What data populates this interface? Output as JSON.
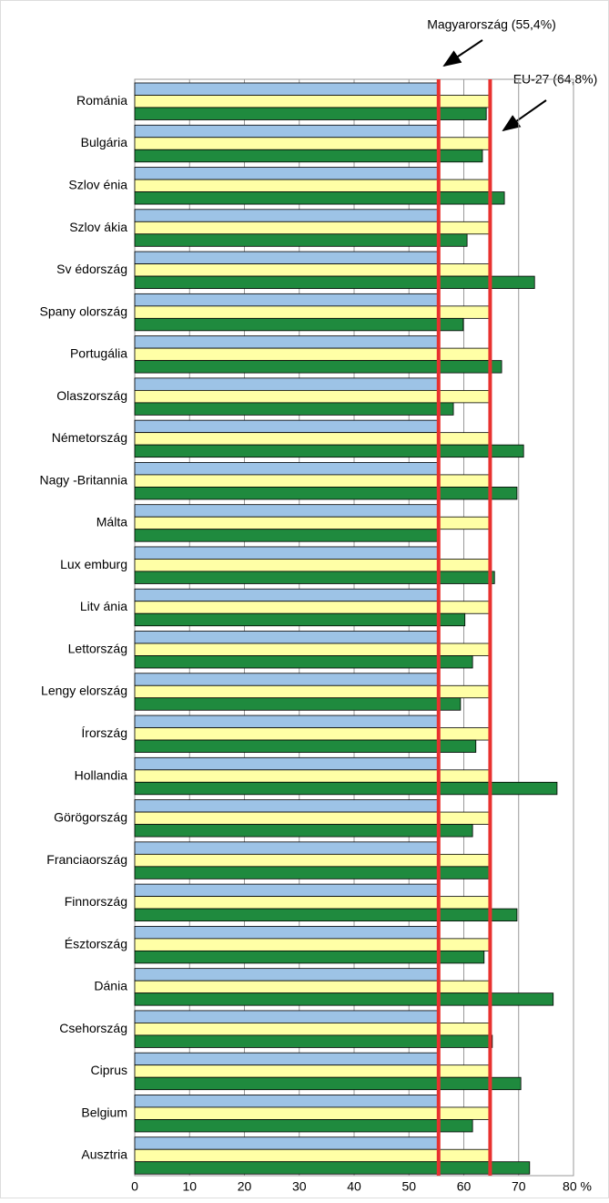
{
  "chart_data": {
    "type": "hbar",
    "annotations": [
      "Magyarország (55,4%)",
      "EU-27 (64,8%)"
    ],
    "categories": [
      "Románia",
      "Bulgária",
      "Szlov énia",
      "Szlov ákia",
      "Sv édország",
      "Spany olország",
      "Portugália",
      "Olaszország",
      "Németország",
      "Nagy -Britannia",
      "Málta",
      "Lux emburg",
      "Litv ánia",
      "Lettország",
      "Lengy elország",
      "Írország",
      "Hollandia",
      "Görögország",
      "Franciaország",
      "Finnország",
      "Észtország",
      "Dánia",
      "Csehország",
      "Ciprus",
      "Belgium",
      "Ausztria"
    ],
    "series": [
      {
        "color": "#9dc3e6",
        "values": [
          55.4,
          55.4,
          55.4,
          55.4,
          55.4,
          55.4,
          55.4,
          55.4,
          55.4,
          55.4,
          55.4,
          55.4,
          55.4,
          55.4,
          55.4,
          55.4,
          55.4,
          55.4,
          55.4,
          55.4,
          55.4,
          55.4,
          55.4,
          55.4,
          55.4,
          55.4
        ]
      },
      {
        "color": "#ffffa6",
        "values": [
          64.8,
          64.8,
          64.8,
          64.8,
          64.8,
          64.8,
          64.8,
          64.8,
          64.8,
          64.8,
          64.8,
          64.8,
          64.8,
          64.8,
          64.8,
          64.8,
          64.8,
          64.8,
          64.8,
          64.8,
          64.8,
          64.8,
          64.8,
          64.8,
          64.8,
          64.8
        ]
      },
      {
        "color": "#1f8a3e",
        "values": [
          64.1,
          63.4,
          67.4,
          60.6,
          72.9,
          59.9,
          66.9,
          58.1,
          70.9,
          69.7,
          55.2,
          65.6,
          60.2,
          61.6,
          59.4,
          62.2,
          77.0,
          61.6,
          64.6,
          69.7,
          63.7,
          76.3,
          65.2,
          70.4,
          61.6,
          72.0
        ]
      }
    ],
    "reference_lines": [
      55.4,
      64.8
    ],
    "reference_color": "#e8312f",
    "xlim": [
      0,
      80
    ],
    "xticks": [
      0,
      10,
      20,
      30,
      40,
      50,
      60,
      70,
      {
        "value": 80,
        "label": "80 %"
      }
    ],
    "grid": true
  }
}
